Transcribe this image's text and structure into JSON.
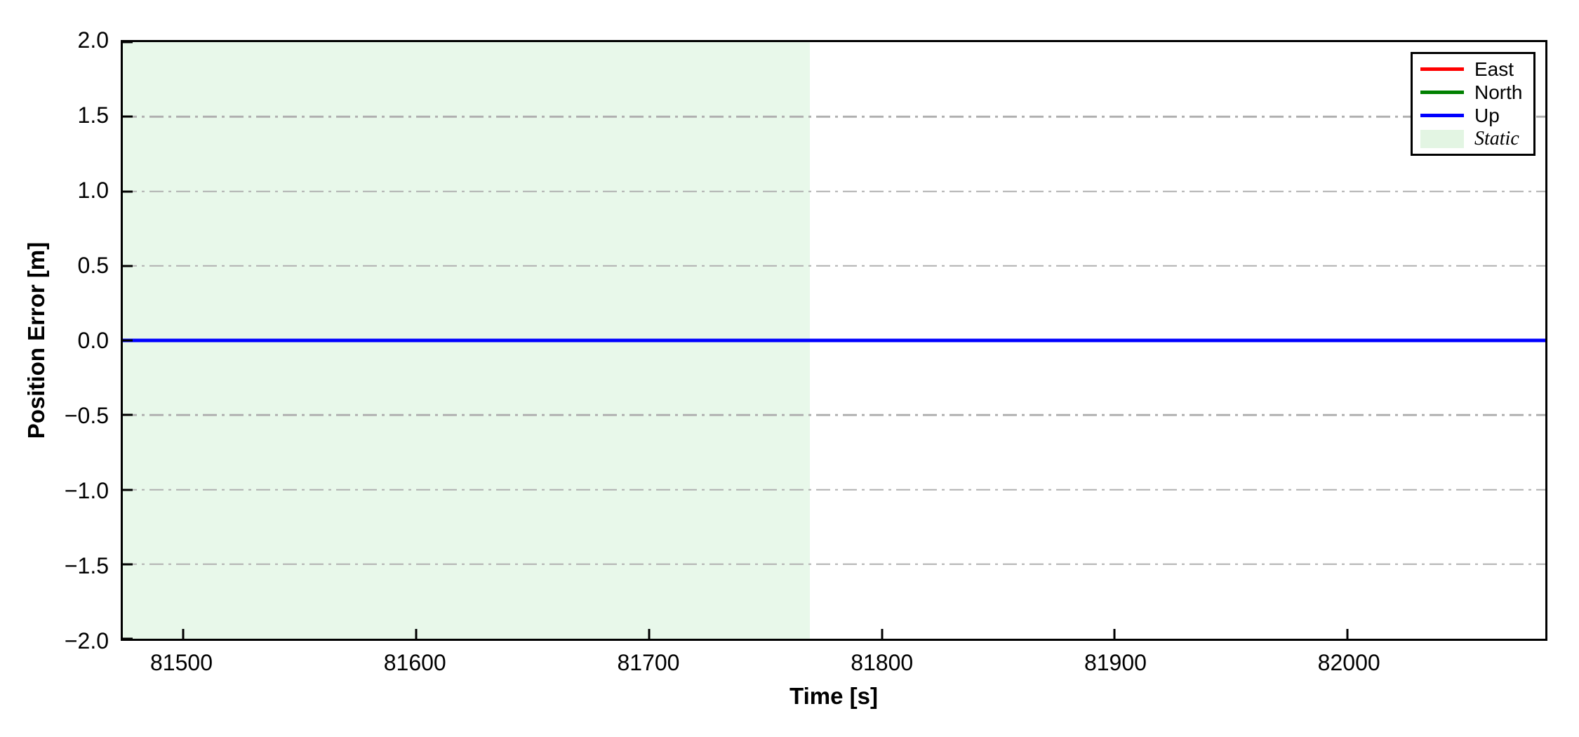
{
  "chart_data": {
    "type": "line",
    "title": "",
    "xlabel": "Time [s]",
    "ylabel": "Position Error [m]",
    "xlim": [
      81474,
      82085
    ],
    "ylim": [
      -2.0,
      2.0
    ],
    "grid": {
      "axis": "y",
      "style": "dash-dot",
      "color": "#b0b0b0"
    },
    "frame_color": "#000000",
    "xticks": [
      {
        "value": 81500,
        "label": "81500"
      },
      {
        "value": 81600,
        "label": "81600"
      },
      {
        "value": 81700,
        "label": "81700"
      },
      {
        "value": 81800,
        "label": "81800"
      },
      {
        "value": 81900,
        "label": "81900"
      },
      {
        "value": 82000,
        "label": "82000"
      }
    ],
    "yticks": [
      {
        "value": 2.0,
        "label": "2.0"
      },
      {
        "value": 1.5,
        "label": "1.5"
      },
      {
        "value": 1.0,
        "label": "1.0"
      },
      {
        "value": 0.5,
        "label": "0.5"
      },
      {
        "value": 0.0,
        "label": "0.0"
      },
      {
        "value": -0.5,
        "label": "−0.5"
      },
      {
        "value": -1.0,
        "label": "−1.0"
      },
      {
        "value": -1.5,
        "label": "−1.5"
      },
      {
        "value": -2.0,
        "label": "−2.0"
      }
    ],
    "series": [
      {
        "name": "East",
        "color": "#ff0000",
        "width": 5,
        "x": [
          81474,
          82085
        ],
        "y": [
          0,
          0
        ]
      },
      {
        "name": "North",
        "color": "#008000",
        "width": 5,
        "x": [
          81474,
          82085
        ],
        "y": [
          0,
          0
        ]
      },
      {
        "name": "Up",
        "color": "#0000ff",
        "width": 5,
        "x": [
          81474,
          82085
        ],
        "y": [
          0,
          0
        ]
      }
    ],
    "regions": [
      {
        "name": "Static",
        "from": 81474,
        "to": 81769,
        "color": "#e8f8ea"
      }
    ],
    "legend": {
      "position": "top-right",
      "entries": [
        {
          "label": "East",
          "swatch": "line",
          "color": "#ff0000",
          "italic": false
        },
        {
          "label": "North",
          "swatch": "line",
          "color": "#008000",
          "italic": false
        },
        {
          "label": "Up",
          "swatch": "line",
          "color": "#0000ff",
          "italic": false
        },
        {
          "label": "Static",
          "swatch": "patch",
          "color": "#e3f5e3",
          "italic": true
        }
      ]
    }
  }
}
